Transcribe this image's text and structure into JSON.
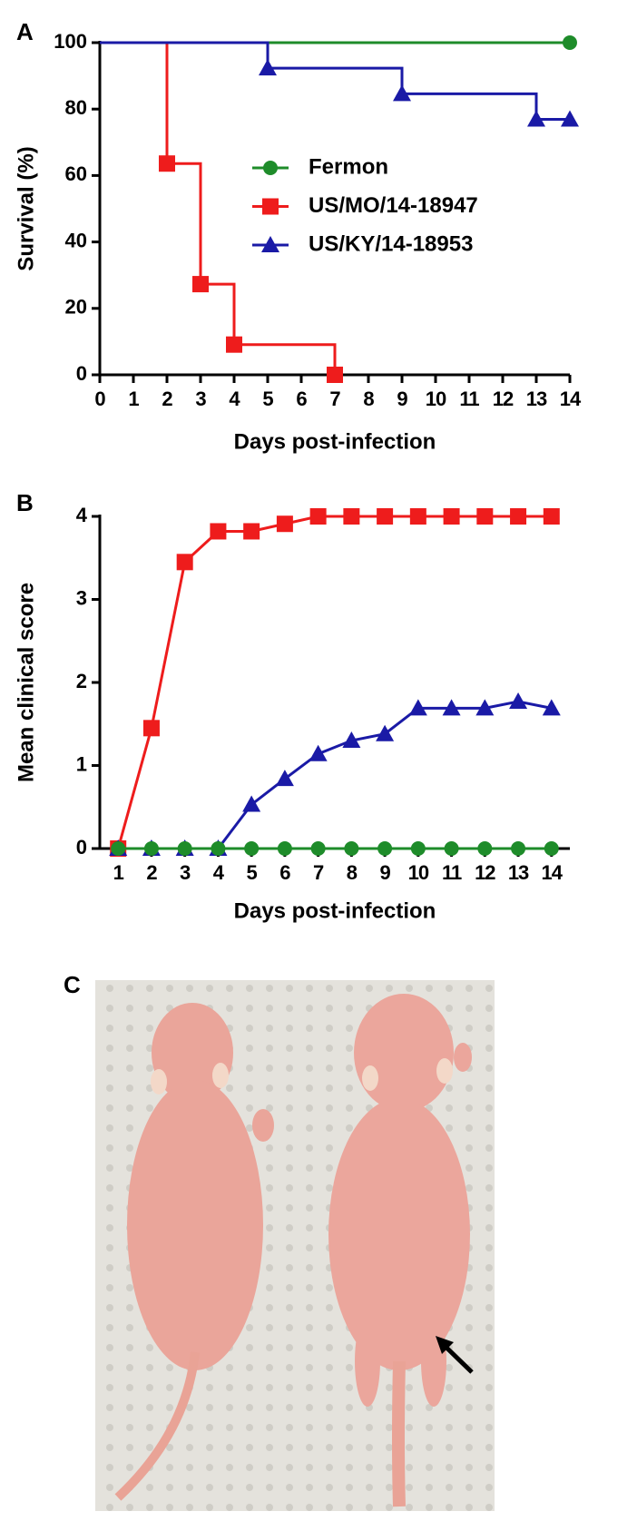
{
  "chart_data": [
    {
      "type": "step",
      "panel_label": "A",
      "xlabel": "Days post-infection",
      "ylabel": "Survival (%)",
      "xlim": [
        0,
        14
      ],
      "xticks": [
        0,
        1,
        2,
        3,
        4,
        5,
        6,
        7,
        8,
        9,
        10,
        11,
        12,
        13,
        14
      ],
      "ylim": [
        0,
        100
      ],
      "yticks": [
        0,
        20,
        40,
        60,
        80,
        100
      ],
      "legend": "center-right",
      "series": [
        {
          "name": "Fermon",
          "color": "#1e8c2a",
          "marker": "circle",
          "x": [
            0,
            14
          ],
          "values": [
            100,
            100
          ]
        },
        {
          "name": "US/MO/14-18947",
          "color": "#ee1c1c",
          "marker": "square",
          "x": [
            0,
            2,
            3,
            4,
            7
          ],
          "values": [
            100,
            63.6,
            27.3,
            9.1,
            0
          ]
        },
        {
          "name": "US/KY/14-18953",
          "color": "#1a1aa6",
          "marker": "triangle",
          "x": [
            0,
            5,
            9,
            13,
            14
          ],
          "values": [
            100,
            92.3,
            84.6,
            76.9,
            76.9
          ]
        }
      ]
    },
    {
      "type": "line",
      "panel_label": "B",
      "xlabel": "Days post-infection",
      "ylabel": "Mean clinical score",
      "xlim": [
        0.45,
        14.55
      ],
      "xticks": [
        1,
        2,
        3,
        4,
        5,
        6,
        7,
        8,
        9,
        10,
        11,
        12,
        13,
        14
      ],
      "ylim": [
        0,
        4
      ],
      "yticks": [
        0,
        1,
        2,
        3,
        4
      ],
      "series": [
        {
          "color": "#ee1c1c",
          "marker": "square",
          "x": [
            1,
            2,
            3,
            4,
            5,
            6,
            7,
            8,
            9,
            10,
            11,
            12,
            13,
            14
          ],
          "values": [
            0,
            1.45,
            3.45,
            3.82,
            3.82,
            3.91,
            4,
            4,
            4,
            4,
            4,
            4,
            4,
            4
          ]
        },
        {
          "color": "#1a1aa6",
          "marker": "triangle",
          "x": [
            1,
            2,
            3,
            4,
            5,
            6,
            7,
            8,
            9,
            10,
            11,
            12,
            13,
            14
          ],
          "values": [
            0,
            0,
            0,
            0,
            0.53,
            0.84,
            1.14,
            1.3,
            1.38,
            1.69,
            1.69,
            1.69,
            1.77,
            1.69
          ]
        },
        {
          "color": "#1e8c2a",
          "marker": "circle",
          "x": [
            1,
            2,
            3,
            4,
            5,
            6,
            7,
            8,
            9,
            10,
            11,
            12,
            13,
            14
          ],
          "values": [
            0,
            0,
            0,
            0,
            0,
            0,
            0,
            0,
            0,
            0,
            0,
            0,
            0,
            0
          ]
        }
      ]
    }
  ],
  "photo": {
    "panel_label": "C"
  }
}
